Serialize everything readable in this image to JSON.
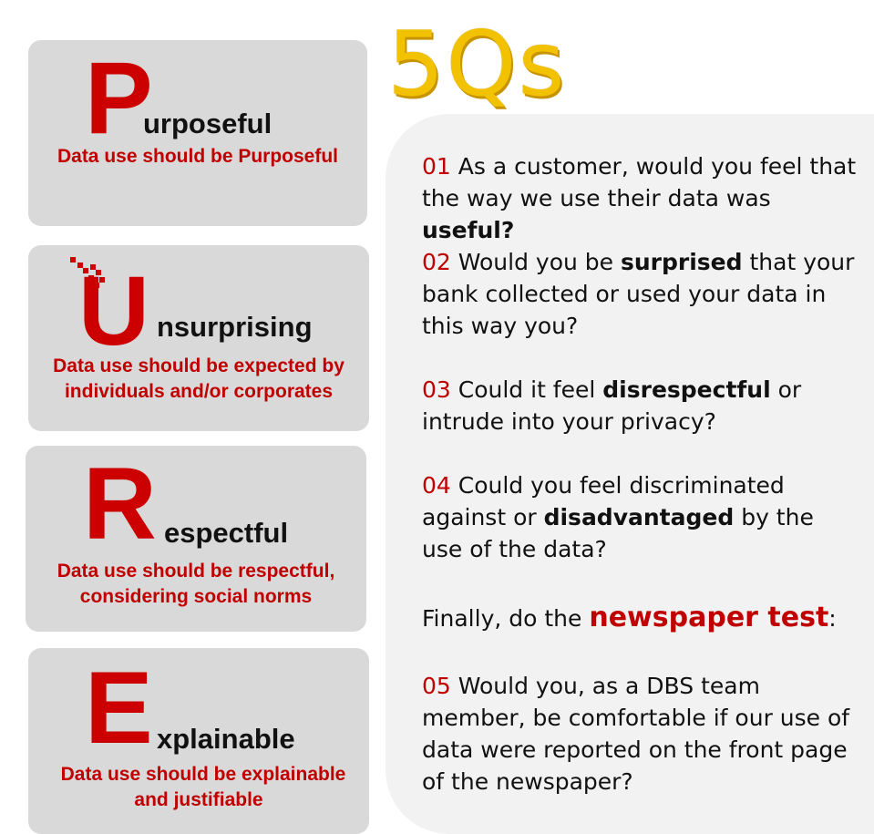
{
  "title": "5Qs",
  "colors": {
    "accent_red": "#cc0000",
    "gold": "#f2c200",
    "card_gray": "#d9d9d9",
    "panel_gray": "#f2f2f2"
  },
  "principles": [
    {
      "letter": "P",
      "rest": "urposeful",
      "description": "Data use should be Purposeful"
    },
    {
      "letter": "U",
      "rest": "nsurprising",
      "description_line1": "Data use should be expected by",
      "description_line2": "individuals and/or corporates"
    },
    {
      "letter": "R",
      "rest": "espectful",
      "description_line1": "Data use should be respectful,",
      "description_line2": "considering social norms"
    },
    {
      "letter": "E",
      "rest": "xplainable",
      "description_line1": "Data use should be explainable",
      "description_line2": "and justifiable"
    }
  ],
  "questions": {
    "q1": {
      "num": "01",
      "pre": " As a customer, would you feel that the way we use their data was ",
      "bold": "useful?",
      "post": ""
    },
    "q2": {
      "num": "02",
      "pre": " Would you be ",
      "bold": "surprised",
      "post": " that your bank collected or used your data in this way you?"
    },
    "q3": {
      "num": "03",
      "pre": " Could it feel ",
      "bold": "disrespectful",
      "post": " or intrude into your privacy?"
    },
    "q4": {
      "num": "04",
      "pre": " Could you feel discriminated against or ",
      "bold": "disadvantaged",
      "post": " by the use of the data?"
    },
    "finally": {
      "pre": "Finally, do the ",
      "highlight": "newspaper test",
      "post": ":"
    },
    "q5": {
      "num": "05",
      "text": " Would you, as a DBS team member, be comfortable if our use of data were reported on the front page of the newspaper?"
    }
  }
}
